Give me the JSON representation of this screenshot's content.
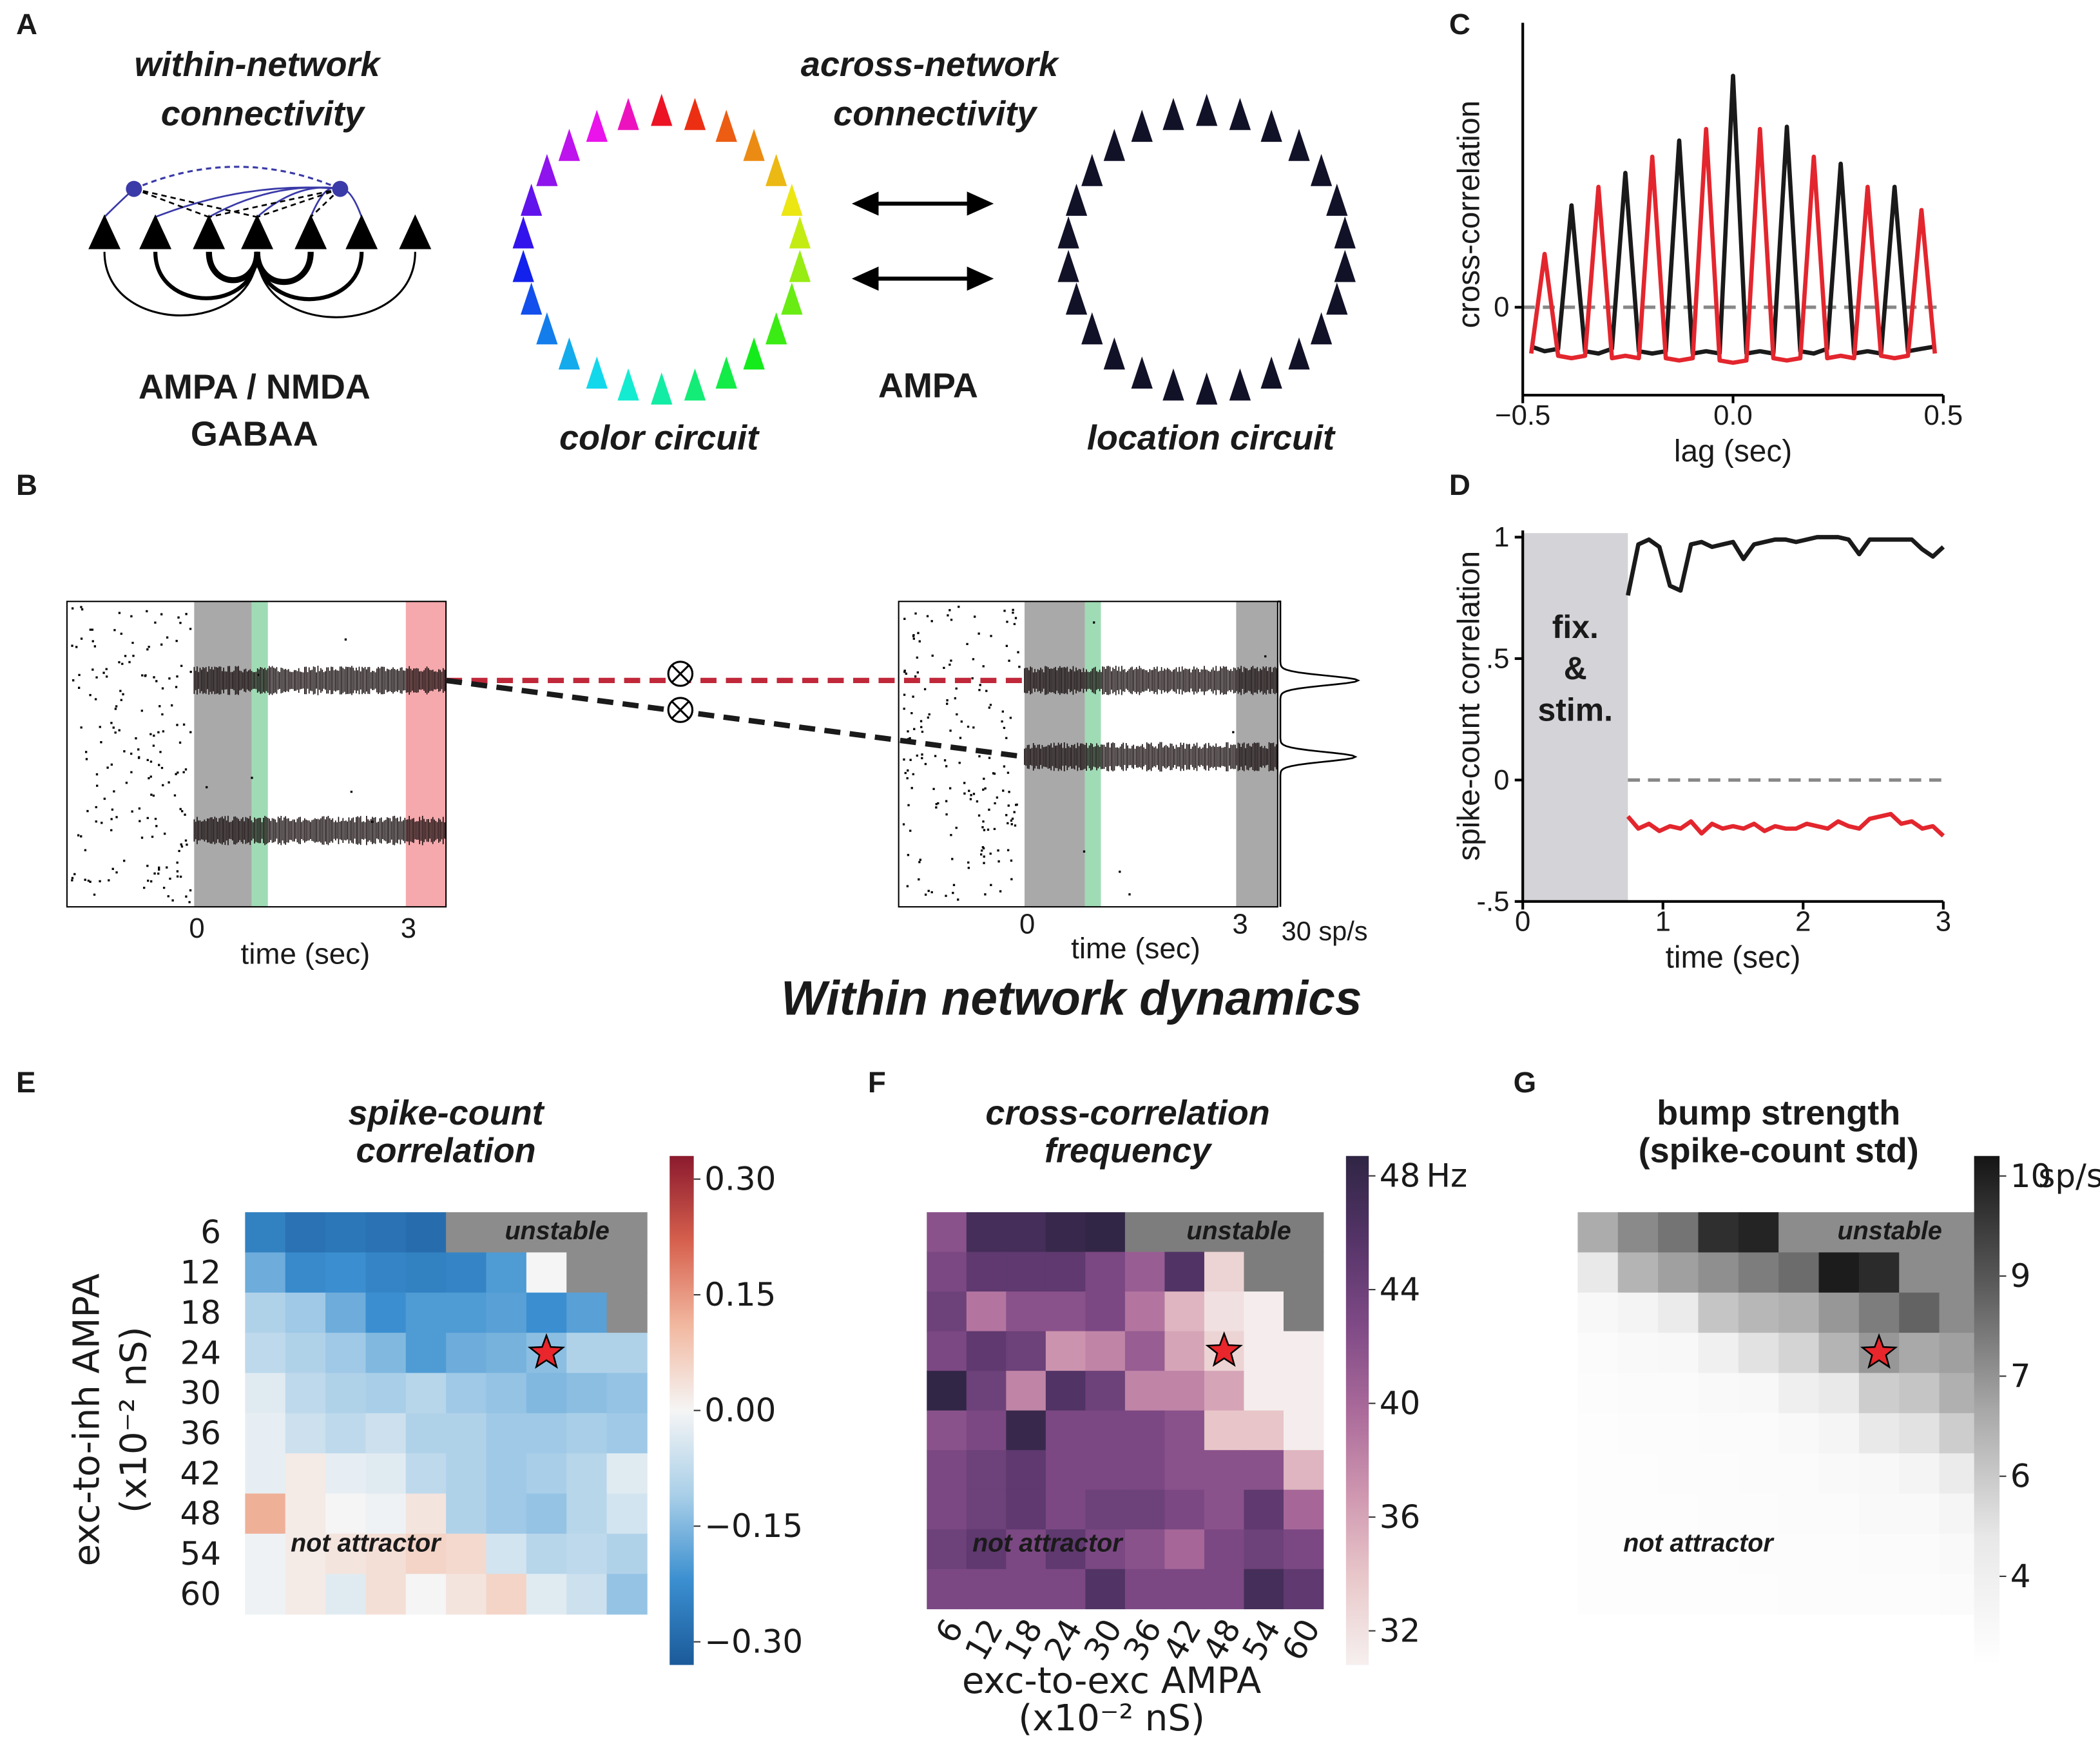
{
  "figure": {
    "panel_labels": [
      "A",
      "B",
      "C",
      "D",
      "E",
      "F",
      "G"
    ],
    "a": {
      "within_title": [
        "within-network",
        "connectivity"
      ],
      "across_title": [
        "across-network",
        "connectivity"
      ],
      "within_receptors": "AMPA / NMDA",
      "within_inhibitory": "GABAA",
      "across_receptor": "AMPA",
      "color_circuit": "color circuit",
      "location_circuit": "location circuit"
    },
    "b": {
      "left_xticks": [
        "0",
        "3"
      ],
      "left_xlabel": "time (sec)",
      "right_xticks": [
        "0",
        "3"
      ],
      "right_xlabel": "time (sec)",
      "rate_scale": "30 sp/s"
    },
    "section_title": "Within network dynamics"
  },
  "chart_data": [
    {
      "type": "line",
      "xlabel": "lag (sec)",
      "ylabel": "cross-correlation",
      "x": [
        -0.48,
        -0.448,
        -0.416,
        -0.384,
        -0.352,
        -0.32,
        -0.288,
        -0.256,
        -0.224,
        -0.192,
        -0.16,
        -0.128,
        -0.096,
        -0.064,
        -0.032,
        0,
        0.032,
        0.064,
        0.096,
        0.128,
        0.16,
        0.192,
        0.224,
        0.256,
        0.288,
        0.32,
        0.352,
        0.384,
        0.416,
        0.448,
        0.48
      ],
      "series": [
        {
          "color": "#1a1a1a",
          "values": [
            -0.17,
            -0.19,
            -0.18,
            0.44,
            -0.19,
            -0.2,
            -0.18,
            0.58,
            -0.19,
            -0.2,
            -0.19,
            0.72,
            -0.2,
            -0.19,
            -0.2,
            1.0,
            -0.2,
            -0.19,
            -0.2,
            0.78,
            -0.19,
            -0.2,
            -0.18,
            0.62,
            -0.2,
            -0.19,
            -0.2,
            0.52,
            -0.19,
            -0.18,
            -0.17
          ]
        },
        {
          "color": "#e3262e",
          "values": [
            -0.2,
            0.23,
            -0.21,
            -0.22,
            -0.21,
            0.52,
            -0.22,
            -0.21,
            -0.22,
            0.65,
            -0.22,
            -0.23,
            -0.22,
            0.77,
            -0.23,
            -0.24,
            -0.23,
            0.77,
            -0.22,
            -0.23,
            -0.22,
            0.65,
            -0.22,
            -0.21,
            -0.22,
            0.52,
            -0.21,
            -0.22,
            -0.21,
            0.42,
            -0.2
          ]
        }
      ],
      "xlim": [
        -0.5,
        0.5
      ],
      "ylim": [
        -0.38,
        1.2
      ],
      "xticks": [
        {
          "value": -0.5,
          "label": "−0.5"
        },
        {
          "value": 0,
          "label": "0.0"
        },
        0.5
      ],
      "yticks": [
        0
      ],
      "hline": 0
    },
    {
      "type": "line",
      "xlabel": "time (sec)",
      "ylabel": "spike-count correlation",
      "annotation": [
        "fix.",
        "&",
        "stim."
      ],
      "shaded_span": [
        0,
        0.75
      ],
      "x": [
        0.75,
        0.825,
        0.9,
        0.975,
        1.05,
        1.125,
        1.2,
        1.275,
        1.35,
        1.425,
        1.5,
        1.575,
        1.65,
        1.725,
        1.8,
        1.875,
        1.95,
        2.025,
        2.1,
        2.175,
        2.25,
        2.325,
        2.4,
        2.475,
        2.55,
        2.625,
        2.7,
        2.775,
        2.85,
        2.925,
        3.0
      ],
      "series": [
        {
          "color": "#1a1a1a",
          "values": [
            0.76,
            0.97,
            0.99,
            0.96,
            0.8,
            0.78,
            0.97,
            0.98,
            0.96,
            0.97,
            0.98,
            0.91,
            0.97,
            0.98,
            0.99,
            0.99,
            0.98,
            0.99,
            1.0,
            1.0,
            1.0,
            0.99,
            0.93,
            0.99,
            0.99,
            0.99,
            0.99,
            0.99,
            0.95,
            0.92,
            0.96
          ]
        },
        {
          "color": "#e3262e",
          "values": [
            -0.15,
            -0.2,
            -0.18,
            -0.21,
            -0.19,
            -0.2,
            -0.17,
            -0.22,
            -0.18,
            -0.2,
            -0.19,
            -0.2,
            -0.18,
            -0.21,
            -0.19,
            -0.2,
            -0.2,
            -0.18,
            -0.19,
            -0.2,
            -0.17,
            -0.19,
            -0.2,
            -0.16,
            -0.15,
            -0.14,
            -0.18,
            -0.17,
            -0.2,
            -0.19,
            -0.23
          ]
        }
      ],
      "xlim": [
        0,
        3
      ],
      "ylim": [
        -0.5,
        1.0
      ],
      "xticks": [
        0,
        1,
        2,
        3
      ],
      "yticks": [
        {
          "value": -0.5,
          "label": "-.5"
        },
        0,
        {
          "value": 0.5,
          "label": ".5"
        },
        1
      ],
      "hline": 0
    },
    {
      "type": "heatmap",
      "title": [
        "spike-count",
        "correlation"
      ],
      "ylabel": [
        "exc-to-inh AMPA",
        "(x10⁻² nS)"
      ],
      "show_xticks": false,
      "show_yticks": true,
      "x_categories": [
        6,
        12,
        18,
        24,
        30,
        36,
        42,
        48,
        54,
        60
      ],
      "y_categories": [
        6,
        12,
        18,
        24,
        30,
        36,
        42,
        48,
        54,
        60
      ],
      "values": [
        [
          -0.25,
          -0.28,
          -0.27,
          -0.28,
          -0.29,
          null,
          null,
          null,
          null,
          null
        ],
        [
          -0.17,
          -0.23,
          -0.22,
          -0.24,
          -0.25,
          -0.24,
          -0.2,
          0.0,
          null,
          null
        ],
        [
          -0.1,
          -0.12,
          -0.17,
          -0.22,
          -0.2,
          -0.2,
          -0.19,
          -0.22,
          -0.19,
          null
        ],
        [
          -0.08,
          -0.1,
          -0.12,
          -0.15,
          -0.2,
          -0.17,
          -0.16,
          -0.14,
          -0.1,
          -0.1
        ],
        [
          -0.03,
          -0.08,
          -0.1,
          -0.11,
          -0.09,
          -0.12,
          -0.13,
          -0.15,
          -0.14,
          -0.13
        ],
        [
          -0.02,
          -0.06,
          -0.08,
          -0.06,
          -0.1,
          -0.1,
          -0.12,
          -0.12,
          -0.11,
          -0.12
        ],
        [
          -0.02,
          0.02,
          -0.02,
          -0.03,
          -0.08,
          -0.1,
          -0.12,
          -0.11,
          -0.09,
          -0.03
        ],
        [
          0.12,
          0.02,
          0.0,
          -0.01,
          0.03,
          -0.1,
          -0.12,
          -0.13,
          -0.09,
          -0.05
        ],
        [
          -0.01,
          0.02,
          0.03,
          0.04,
          0.06,
          0.05,
          -0.05,
          -0.09,
          -0.08,
          -0.1
        ],
        [
          -0.01,
          0.02,
          -0.03,
          0.04,
          0.0,
          0.03,
          0.06,
          -0.03,
          -0.06,
          -0.13
        ]
      ],
      "clim": [
        -0.33,
        0.33
      ],
      "colormap": [
        "#1b5a9a",
        "#3b8fd0",
        "#a9cfe8",
        "#f5f5f5",
        "#f2b8a0",
        "#d6604d",
        "#8b1a2e"
      ],
      "null_color": "#8c8c8c",
      "cticks": [
        {
          "value": 0.3,
          "label": "0.30"
        },
        {
          "value": 0.15,
          "label": "0.15"
        },
        {
          "value": 0,
          "label": "0.00"
        },
        {
          "value": -0.15,
          "label": "−0.15"
        },
        {
          "value": -0.3,
          "label": "−0.30"
        }
      ],
      "annotations": [
        "unstable",
        "not attractor"
      ],
      "marker": {
        "x": 48,
        "y": 24
      }
    },
    {
      "type": "heatmap",
      "title": [
        "cross-correlation",
        "frequency"
      ],
      "xlabel": [
        "exc-to-exc AMPA",
        "(x10⁻² nS)"
      ],
      "show_xticks": true,
      "show_yticks": false,
      "x_categories": [
        6,
        12,
        18,
        24,
        30,
        36,
        42,
        48,
        54,
        60
      ],
      "y_categories": [
        6,
        12,
        18,
        24,
        30,
        36,
        42,
        48,
        54,
        60
      ],
      "values": [
        [
          42,
          47,
          47,
          48,
          48.5,
          null,
          null,
          null,
          null,
          null
        ],
        [
          43,
          45,
          45,
          45,
          43,
          41,
          46,
          33,
          null,
          null
        ],
        [
          44,
          39,
          42,
          42,
          43,
          39,
          35,
          32,
          31,
          null
        ],
        [
          43,
          45,
          44,
          37,
          38,
          41,
          36,
          33,
          31,
          31
        ],
        [
          48.5,
          44,
          38,
          46,
          44,
          38,
          38,
          36,
          31,
          31
        ],
        [
          42,
          43,
          48,
          43,
          43,
          43,
          42,
          34,
          34,
          31
        ],
        [
          43,
          44,
          45,
          43,
          43,
          43,
          42,
          42,
          42,
          35
        ],
        [
          43,
          44,
          45,
          43,
          44,
          44,
          43,
          42,
          45,
          40
        ],
        [
          44,
          45,
          43,
          45,
          43,
          42,
          40,
          43,
          44,
          43
        ],
        [
          43,
          43,
          43,
          43,
          46,
          43,
          43,
          43,
          47,
          45
        ]
      ],
      "clim": [
        30.8,
        48.7
      ],
      "colormap": [
        "#f6f0ef",
        "#e9c9cb",
        "#cf97b0",
        "#aa6a9a",
        "#7f4a86",
        "#553468",
        "#2f2544"
      ],
      "null_color": "#7d7d7d",
      "cticks": [
        48,
        44,
        40,
        36,
        32
      ],
      "colorbar_unit": "Hz",
      "annotations": [
        "unstable",
        "not attractor"
      ],
      "marker": {
        "x": 48,
        "y": 24
      }
    },
    {
      "type": "heatmap",
      "title": [
        "bump strength",
        "(spike-count std)"
      ],
      "show_xticks": false,
      "show_yticks": false,
      "x_categories": [
        6,
        12,
        18,
        24,
        30,
        36,
        42,
        48,
        54,
        60
      ],
      "y_categories": [
        6,
        12,
        18,
        24,
        30,
        36,
        42,
        48,
        54,
        60
      ],
      "values": [
        [
          6.5,
          7.3,
          7.8,
          9.5,
          9.8,
          null,
          null,
          null,
          null,
          null
        ],
        [
          4.8,
          6.3,
          6.8,
          7.2,
          7.6,
          8.0,
          10.0,
          9.6,
          null,
          null
        ],
        [
          3.6,
          3.9,
          4.6,
          5.8,
          6.2,
          6.4,
          7.0,
          7.6,
          8.2,
          null
        ],
        [
          3.4,
          3.5,
          3.6,
          4.2,
          5.0,
          5.4,
          6.3,
          7.0,
          6.6,
          6.8
        ],
        [
          3.3,
          3.4,
          3.4,
          3.5,
          3.6,
          4.3,
          4.8,
          5.6,
          5.8,
          6.4
        ],
        [
          3.2,
          3.3,
          3.3,
          3.4,
          3.4,
          3.5,
          3.8,
          4.8,
          5.0,
          5.6
        ],
        [
          3.2,
          3.2,
          3.3,
          3.3,
          3.4,
          3.4,
          3.5,
          3.6,
          3.9,
          4.6
        ],
        [
          3.2,
          3.2,
          3.2,
          3.3,
          3.3,
          3.4,
          3.4,
          3.5,
          3.5,
          3.8
        ],
        [
          3.2,
          3.2,
          3.2,
          3.2,
          3.3,
          3.3,
          3.3,
          3.4,
          3.4,
          3.5
        ],
        [
          3.2,
          3.2,
          3.2,
          3.2,
          3.2,
          3.3,
          3.3,
          3.3,
          3.3,
          3.4
        ]
      ],
      "clim": [
        3.06,
        10.18
      ],
      "colormap": [
        "#ffffff",
        "#e8e8e8",
        "#a8a8a8",
        "#5a5a5a",
        "#151515"
      ],
      "null_color": "#8c8c8c",
      "cticks": [
        {
          "value": 9.9,
          "label": "10"
        },
        {
          "value": 8.5,
          "label": "9"
        },
        {
          "value": 7.1,
          "label": "7"
        },
        {
          "value": 5.7,
          "label": "6"
        },
        {
          "value": 4.3,
          "label": "4"
        }
      ],
      "colorbar_unit": "sp/s",
      "annotations": [
        "unstable",
        "not attractor"
      ],
      "marker": {
        "x": 48,
        "y": 24
      }
    }
  ]
}
